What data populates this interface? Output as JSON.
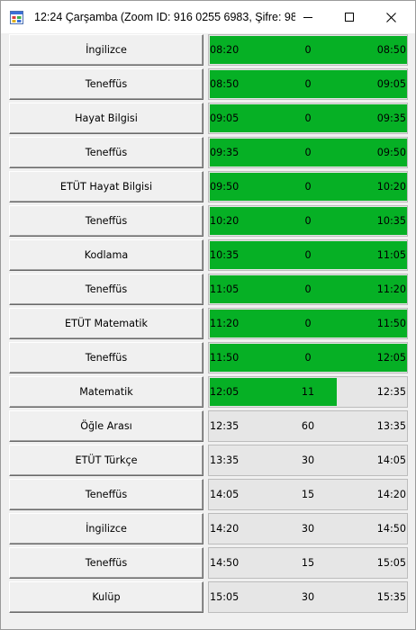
{
  "window": {
    "title": "12:24 Çarşamba (Zoom ID: 916 0255 6983, Şifre: 98...",
    "icon": "app-window-icon"
  },
  "controls": {
    "minimize": "minimize-icon",
    "maximize": "maximize-icon",
    "close": "close-icon"
  },
  "colors": {
    "progress_fill": "#06b025",
    "progress_track": "#e6e6e6"
  },
  "schedule": [
    {
      "lesson": "İngilizce",
      "start": "08:20",
      "remaining": "0",
      "end": "08:50",
      "progress": 1.0
    },
    {
      "lesson": "Teneffüs",
      "start": "08:50",
      "remaining": "0",
      "end": "09:05",
      "progress": 1.0
    },
    {
      "lesson": "Hayat Bilgisi",
      "start": "09:05",
      "remaining": "0",
      "end": "09:35",
      "progress": 1.0
    },
    {
      "lesson": "Teneffüs",
      "start": "09:35",
      "remaining": "0",
      "end": "09:50",
      "progress": 1.0
    },
    {
      "lesson": "ETÜT Hayat Bilgisi",
      "start": "09:50",
      "remaining": "0",
      "end": "10:20",
      "progress": 1.0
    },
    {
      "lesson": "Teneffüs",
      "start": "10:20",
      "remaining": "0",
      "end": "10:35",
      "progress": 1.0
    },
    {
      "lesson": "Kodlama",
      "start": "10:35",
      "remaining": "0",
      "end": "11:05",
      "progress": 1.0
    },
    {
      "lesson": "Teneffüs",
      "start": "11:05",
      "remaining": "0",
      "end": "11:20",
      "progress": 1.0
    },
    {
      "lesson": "ETÜT Matematik",
      "start": "11:20",
      "remaining": "0",
      "end": "11:50",
      "progress": 1.0
    },
    {
      "lesson": "Teneffüs",
      "start": "11:50",
      "remaining": "0",
      "end": "12:05",
      "progress": 1.0
    },
    {
      "lesson": "Matematik",
      "start": "12:05",
      "remaining": "11",
      "end": "12:35",
      "progress": 0.64
    },
    {
      "lesson": "Öğle Arası",
      "start": "12:35",
      "remaining": "60",
      "end": "13:35",
      "progress": 0
    },
    {
      "lesson": "ETÜT Türkçe",
      "start": "13:35",
      "remaining": "30",
      "end": "14:05",
      "progress": 0
    },
    {
      "lesson": "Teneffüs",
      "start": "14:05",
      "remaining": "15",
      "end": "14:20",
      "progress": 0
    },
    {
      "lesson": "İngilizce",
      "start": "14:20",
      "remaining": "30",
      "end": "14:50",
      "progress": 0
    },
    {
      "lesson": "Teneffüs",
      "start": "14:50",
      "remaining": "15",
      "end": "15:05",
      "progress": 0
    },
    {
      "lesson": "Kulüp",
      "start": "15:05",
      "remaining": "30",
      "end": "15:35",
      "progress": 0
    }
  ]
}
